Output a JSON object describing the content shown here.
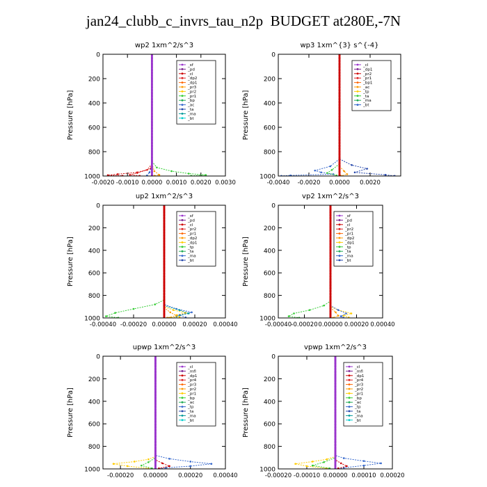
{
  "page": {
    "title": "jan24_clubb_c_invrs_tau_n2p  BUDGET at280E,-7N"
  },
  "chart_data": [
    {
      "type": "line",
      "title": "wp2  1xm^2/s^3",
      "ylabel": "Pressure [hPa]",
      "xlim": [
        -0.002,
        0.003
      ],
      "ylim": [
        1000,
        0
      ],
      "xticks": [
        "-0.0020",
        "-0.0010",
        "0.0000",
        "0.0010",
        "0.0020",
        "0.0030"
      ],
      "yticks": [
        "0",
        "200",
        "400",
        "600",
        "800",
        "1000"
      ],
      "legend": [
        "_sf",
        "_pd",
        "_cl",
        "_dp2",
        "_dp1",
        "_pr3",
        "_pr2",
        "_pr1",
        "_bp",
        "_ac",
        "_ta",
        "_ma",
        "_bt"
      ],
      "series": [
        {
          "name": "_cl",
          "color": "#cc0000",
          "points": [
            [
              0,
              0
            ],
            [
              0,
              880
            ],
            [
              -5e-05,
              940
            ],
            [
              -0.0006,
              970
            ],
            [
              -0.0014,
              985
            ],
            [
              -0.0018,
              993
            ],
            [
              -0.0012,
              998
            ]
          ]
        },
        {
          "name": "_pr1",
          "color": "#33cc33",
          "points": [
            [
              0,
              0
            ],
            [
              0,
              880
            ],
            [
              0.0002,
              930
            ],
            [
              0.0008,
              960
            ],
            [
              0.0015,
              980
            ],
            [
              0.0022,
              992
            ],
            [
              0.0016,
              998
            ]
          ]
        },
        {
          "name": "_dp1",
          "color": "#dd2222",
          "points": [
            [
              0,
              0
            ],
            [
              0,
              900
            ],
            [
              -0.0002,
              950
            ],
            [
              -0.0006,
              975
            ],
            [
              -0.0009,
              990
            ],
            [
              -0.0005,
              998
            ]
          ]
        },
        {
          "name": "_pr3",
          "color": "#ff9900",
          "points": [
            [
              0,
              0
            ],
            [
              0,
              900
            ],
            [
              0.0001,
              960
            ],
            [
              0.0003,
              990
            ],
            [
              0.0001,
              998
            ]
          ]
        },
        {
          "name": "_bp",
          "color": "#3366cc",
          "points": [
            [
              0,
              0
            ],
            [
              0,
              920
            ],
            [
              -0.0001,
              970
            ],
            [
              -0.0002,
              995
            ]
          ]
        },
        {
          "name": "_pd",
          "color": "#9933cc",
          "points": [
            [
              0,
              0
            ],
            [
              0,
              1000
            ]
          ]
        }
      ]
    },
    {
      "type": "line",
      "title": "wp3  1xm^{3} s^{-4}",
      "ylabel": "Pressure [hPa]",
      "xlim": [
        -0.004,
        0.004
      ],
      "ylim": [
        1000,
        0
      ],
      "xticks": [
        "-0.0040",
        "-0.0020",
        "0.0000",
        "0.0020"
      ],
      "yticks": [
        "0",
        "200",
        "400",
        "600",
        "800",
        "1000"
      ],
      "legend": [
        "_cl",
        "_dp1",
        "_pr2",
        "_pr1",
        "_bp1",
        "_ac",
        "_tp",
        "_ta",
        "_ma",
        "_bt"
      ],
      "series": [
        {
          "name": "_tp",
          "color": "#3366cc",
          "points": [
            [
              0,
              0
            ],
            [
              0,
              860
            ],
            [
              -0.0006,
              920
            ],
            [
              -0.0016,
              955
            ],
            [
              -0.0012,
              970
            ],
            [
              -0.0004,
              985
            ],
            [
              -0.0032,
              995
            ],
            [
              -0.0038,
              999
            ]
          ]
        },
        {
          "name": "_ta",
          "color": "#2244aa",
          "points": [
            [
              0,
              0
            ],
            [
              0,
              860
            ],
            [
              0.0008,
              910
            ],
            [
              0.0018,
              940
            ],
            [
              0.001,
              970
            ],
            [
              0.003,
              990
            ],
            [
              0.0036,
              999
            ]
          ]
        },
        {
          "name": "_ac",
          "color": "#33cc33",
          "points": [
            [
              0,
              0
            ],
            [
              0,
              900
            ],
            [
              -0.0005,
              950
            ],
            [
              -0.0008,
              975
            ],
            [
              -0.0002,
              995
            ]
          ]
        },
        {
          "name": "_pr1",
          "color": "#ff9900",
          "points": [
            [
              0,
              0
            ],
            [
              0,
              920
            ],
            [
              0.0003,
              960
            ],
            [
              0.0005,
              985
            ],
            [
              0.0001,
              998
            ]
          ]
        },
        {
          "name": "_cl",
          "color": "#cc0000",
          "points": [
            [
              0,
              0
            ],
            [
              0,
              1000
            ]
          ]
        }
      ]
    },
    {
      "type": "line",
      "title": "up2  1xm^2/s^3",
      "ylabel": "Pressure [hPa]",
      "xlim": [
        -0.0004,
        0.0004
      ],
      "ylim": [
        1000,
        0
      ],
      "xticks": [
        "-0.00040",
        "-0.00020",
        "0.00000",
        "0.00020",
        "0.00040"
      ],
      "yticks": [
        "0",
        "200",
        "400",
        "600",
        "800",
        "1000"
      ],
      "legend": [
        "_sf",
        "_pd",
        "_cl",
        "_pr2",
        "_pr1",
        "_dp2",
        "_dp1",
        "_tp",
        "_ta",
        "_ma",
        "_bt"
      ],
      "series": [
        {
          "name": "_dp2",
          "color": "#33cc33",
          "points": [
            [
              0,
              0
            ],
            [
              0,
              840
            ],
            [
              -6e-05,
              880
            ],
            [
              -0.0002,
              920
            ],
            [
              -0.00032,
              955
            ],
            [
              -0.00038,
              985
            ],
            [
              -0.0003,
              998
            ]
          ]
        },
        {
          "name": "_pr1",
          "color": "#ffcc00",
          "points": [
            [
              0,
              0
            ],
            [
              0,
              900
            ],
            [
              6e-05,
              930
            ],
            [
              0.00014,
              955
            ],
            [
              8e-05,
              975
            ],
            [
              0.0001,
              990
            ],
            [
              4e-05,
              998
            ]
          ]
        },
        {
          "name": "_tp",
          "color": "#3366cc",
          "points": [
            [
              0,
              0
            ],
            [
              0,
              880
            ],
            [
              8e-05,
              920
            ],
            [
              0.00018,
              950
            ],
            [
              0.0001,
              975
            ],
            [
              0.00014,
              995
            ]
          ]
        },
        {
          "name": "_ma",
          "color": "#009999",
          "points": [
            [
              0,
              0
            ],
            [
              0,
              890
            ],
            [
              0.0001,
              930
            ],
            [
              0.00016,
              960
            ],
            [
              8e-05,
              985
            ]
          ]
        },
        {
          "name": "_pr2",
          "color": "#ff9900",
          "points": [
            [
              0,
              0
            ],
            [
              0,
              910
            ],
            [
              4e-05,
              950
            ],
            [
              8e-05,
              980
            ],
            [
              2e-05,
              998
            ]
          ]
        },
        {
          "name": "_cl",
          "color": "#cc0000",
          "points": [
            [
              0,
              0
            ],
            [
              0,
              1000
            ]
          ]
        }
      ]
    },
    {
      "type": "line",
      "title": "vp2  1xm^2/s^3",
      "ylabel": "Pressure [hPa]",
      "xlim": [
        -0.0004,
        0.0004
      ],
      "ylim": [
        1000,
        0
      ],
      "xticks": [
        "-0.00040",
        "-0.00020",
        "0.00000",
        "0.00020",
        "0.00040"
      ],
      "yticks": [
        "0",
        "200",
        "400",
        "600",
        "800",
        "1000"
      ],
      "legend": [
        "_sf",
        "_pd",
        "_cl",
        "_pr2",
        "_pr1",
        "_dp2",
        "_dp1",
        "_tp",
        "_ta",
        "_ma",
        "_bt"
      ],
      "series": [
        {
          "name": "_dp2",
          "color": "#33cc33",
          "points": [
            [
              0,
              0
            ],
            [
              0,
              850
            ],
            [
              -5e-05,
              890
            ],
            [
              -0.00016,
              930
            ],
            [
              -0.00028,
              960
            ],
            [
              -0.00032,
              985
            ],
            [
              -0.00024,
              998
            ]
          ]
        },
        {
          "name": "_pr1",
          "color": "#ffcc00",
          "points": [
            [
              0,
              0
            ],
            [
              0,
              900
            ],
            [
              6e-05,
              930
            ],
            [
              0.00016,
              960
            ],
            [
              0.0001,
              980
            ],
            [
              0.00014,
              995
            ]
          ]
        },
        {
          "name": "_tp",
          "color": "#3366cc",
          "points": [
            [
              0,
              0
            ],
            [
              0,
              890
            ],
            [
              6e-05,
              930
            ],
            [
              0.00012,
              960
            ],
            [
              8e-05,
              985
            ],
            [
              0.0001,
              998
            ]
          ]
        },
        {
          "name": "_pr2",
          "color": "#ff9900",
          "points": [
            [
              0,
              0
            ],
            [
              0,
              910
            ],
            [
              4e-05,
              950
            ],
            [
              6e-05,
              980
            ],
            [
              2e-05,
              998
            ]
          ]
        },
        {
          "name": "_cl",
          "color": "#cc0000",
          "points": [
            [
              0,
              0
            ],
            [
              0,
              1000
            ]
          ]
        }
      ]
    },
    {
      "type": "line",
      "title": "upwp  1xm^2/s^3",
      "ylabel": "Pressure [hPa]",
      "xlim": [
        -0.0003,
        0.0004
      ],
      "ylim": [
        1000,
        0
      ],
      "xticks": [
        "-0.00020",
        "0.00000",
        "0.00020",
        "0.00040"
      ],
      "yticks": [
        "0",
        "200",
        "400",
        "600",
        "800",
        "1000"
      ],
      "legend": [
        "_cl",
        "_mfl",
        "_dp1",
        "_pr4",
        "_pr3",
        "_pr2",
        "_pr1",
        "_bp",
        "_ac",
        "_tp",
        "_ta",
        "_ma",
        "_bt"
      ],
      "series": [
        {
          "name": "_tp",
          "color": "#3366cc",
          "points": [
            [
              0,
              0
            ],
            [
              0,
              880
            ],
            [
              8e-05,
              910
            ],
            [
              0.0002,
              935
            ],
            [
              0.00032,
              955
            ],
            [
              0.0002,
              975
            ],
            [
              6e-05,
              990
            ],
            [
              2e-05,
              998
            ]
          ]
        },
        {
          "name": "_pr1",
          "color": "#ffcc00",
          "points": [
            [
              0,
              0
            ],
            [
              0,
              890
            ],
            [
              -4e-05,
              915
            ],
            [
              -0.00012,
              935
            ],
            [
              -0.00024,
              955
            ],
            [
              -0.00016,
              975
            ],
            [
              -4e-05,
              995
            ]
          ]
        },
        {
          "name": "_bp",
          "color": "#33cc33",
          "points": [
            [
              0,
              0
            ],
            [
              0,
              900
            ],
            [
              -4e-05,
              940
            ],
            [
              -8e-05,
              970
            ],
            [
              -2e-05,
              995
            ]
          ]
        },
        {
          "name": "_pr3",
          "color": "#cc0000",
          "points": [
            [
              0,
              0
            ],
            [
              0,
              920
            ],
            [
              4e-05,
              950
            ],
            [
              8e-05,
              975
            ],
            [
              2e-05,
              995
            ]
          ]
        },
        {
          "name": "_cl",
          "color": "#9933cc",
          "points": [
            [
              0,
              0
            ],
            [
              0,
              1000
            ]
          ]
        }
      ]
    },
    {
      "type": "line",
      "title": "vpwp  1xm^2/s^3",
      "ylabel": "Pressure [hPa]",
      "xlim": [
        -0.0002,
        0.0002
      ],
      "ylim": [
        1000,
        0
      ],
      "xticks": [
        "-0.00020",
        "-0.00010",
        "0.00000",
        "0.00010",
        "0.00020"
      ],
      "yticks": [
        "0",
        "200",
        "400",
        "600",
        "800",
        "1000"
      ],
      "legend": [
        "_cl",
        "_mfl",
        "_dp1",
        "_pr4",
        "_pr3",
        "_pr2",
        "_pr1",
        "_bp",
        "_ac",
        "_tp",
        "_ta",
        "_ma",
        "_bt"
      ],
      "series": [
        {
          "name": "_tp",
          "color": "#3366cc",
          "points": [
            [
              0,
              0
            ],
            [
              0,
              880
            ],
            [
              3e-05,
              905
            ],
            [
              0.0001,
              930
            ],
            [
              0.00016,
              950
            ],
            [
              0.0001,
              970
            ],
            [
              3e-05,
              990
            ],
            [
              1e-05,
              998
            ]
          ]
        },
        {
          "name": "_pr1",
          "color": "#ffcc00",
          "points": [
            [
              0,
              0
            ],
            [
              0,
              890
            ],
            [
              -3e-05,
              915
            ],
            [
              -8e-05,
              935
            ],
            [
              -0.00014,
              955
            ],
            [
              -0.0001,
              975
            ],
            [
              -3e-05,
              995
            ]
          ]
        },
        {
          "name": "_bp",
          "color": "#33cc33",
          "points": [
            [
              0,
              0
            ],
            [
              0,
              900
            ],
            [
              -4e-05,
              940
            ],
            [
              -8e-05,
              970
            ],
            [
              -2e-05,
              995
            ]
          ]
        },
        {
          "name": "_pr3",
          "color": "#cc0000",
          "points": [
            [
              0,
              0
            ],
            [
              0,
              920
            ],
            [
              2e-05,
              950
            ],
            [
              4e-05,
              975
            ],
            [
              1e-05,
              995
            ]
          ]
        },
        {
          "name": "_cl",
          "color": "#9933cc",
          "points": [
            [
              0,
              0
            ],
            [
              0,
              1000
            ]
          ]
        }
      ]
    }
  ]
}
